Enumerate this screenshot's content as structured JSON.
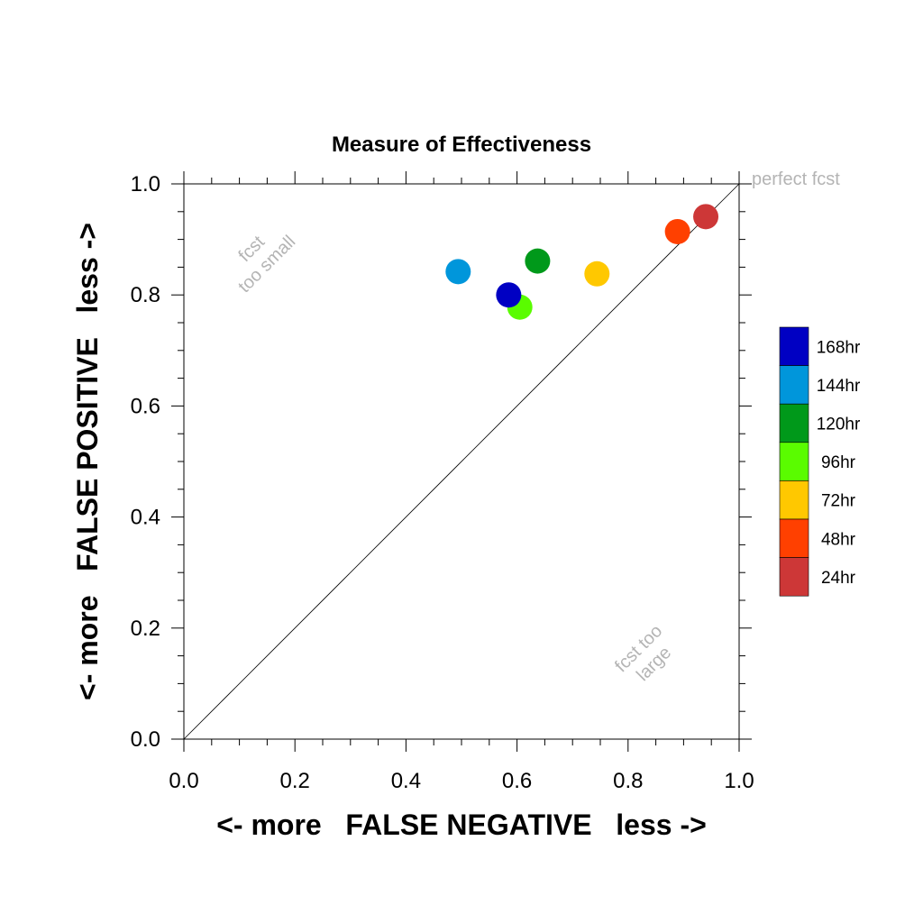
{
  "chart_data": {
    "type": "scatter",
    "title": "Measure of Effectiveness",
    "xlabel": "<- more   FALSE NEGATIVE   less ->",
    "ylabel": "<- more   FALSE POSITIVE   less ->",
    "xlim": [
      0,
      1
    ],
    "ylim": [
      0,
      1
    ],
    "xticks": [
      "0.0",
      "0.2",
      "0.4",
      "0.6",
      "0.8",
      "1.0"
    ],
    "yticks": [
      "0.0",
      "0.2",
      "0.4",
      "0.6",
      "0.8",
      "1.0"
    ],
    "grid": false,
    "diagonal_line": true,
    "legend_placement": "right",
    "annotations": {
      "top_right": "perfect fcst",
      "upper_left": [
        "fcst",
        "too small"
      ],
      "lower_right": [
        "fcst too",
        "large"
      ]
    },
    "series": [
      {
        "name": "168hr",
        "color": "#0000c3",
        "x": 0.585,
        "y": 0.8
      },
      {
        "name": "144hr",
        "color": "#0096db",
        "x": 0.494,
        "y": 0.842
      },
      {
        "name": "120hr",
        "color": "#00991a",
        "x": 0.637,
        "y": 0.861
      },
      {
        "name": "96hr",
        "color": "#5afc00",
        "x": 0.605,
        "y": 0.778
      },
      {
        "name": "72hr",
        "color": "#ffc800",
        "x": 0.744,
        "y": 0.838
      },
      {
        "name": "48hr",
        "color": "#ff4000",
        "x": 0.889,
        "y": 0.914
      },
      {
        "name": "24hr",
        "color": "#cd3737",
        "x": 0.94,
        "y": 0.941
      }
    ]
  }
}
